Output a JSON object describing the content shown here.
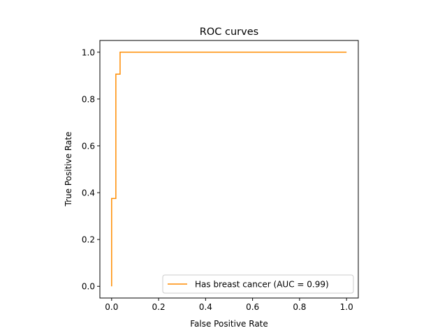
{
  "chart_data": {
    "type": "line",
    "title": "ROC curves",
    "xlabel": "False Positive Rate",
    "ylabel": "True Positive Rate",
    "xlim": [
      -0.05,
      1.05
    ],
    "ylim": [
      -0.05,
      1.05
    ],
    "xticks": [
      0.0,
      0.2,
      0.4,
      0.6,
      0.8,
      1.0
    ],
    "yticks": [
      0.0,
      0.2,
      0.4,
      0.6,
      0.8,
      1.0
    ],
    "xtick_labels": [
      "0.0",
      "0.2",
      "0.4",
      "0.6",
      "0.8",
      "1.0"
    ],
    "ytick_labels": [
      "0.0",
      "0.2",
      "0.4",
      "0.6",
      "0.8",
      "1.0"
    ],
    "grid": false,
    "legend_position": "lower-right",
    "series": [
      {
        "name": "Has breast cancer (AUC = 0.99)",
        "color": "#ff8c00",
        "x": [
          0.0,
          0.0,
          0.018,
          0.018,
          0.018,
          0.036,
          0.036,
          1.0
        ],
        "y": [
          0.0,
          0.375,
          0.375,
          0.906,
          0.906,
          0.906,
          1.0,
          1.0
        ]
      }
    ]
  }
}
